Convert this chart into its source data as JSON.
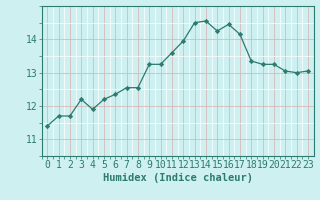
{
  "x": [
    0,
    1,
    2,
    3,
    4,
    5,
    6,
    7,
    8,
    9,
    10,
    11,
    12,
    13,
    14,
    15,
    16,
    17,
    18,
    19,
    20,
    21,
    22,
    23
  ],
  "y": [
    11.4,
    11.7,
    11.7,
    12.2,
    11.9,
    12.2,
    12.35,
    12.55,
    12.55,
    13.25,
    13.25,
    13.6,
    13.95,
    14.5,
    14.55,
    14.25,
    14.45,
    14.15,
    13.35,
    13.25,
    13.25,
    13.05,
    13.0,
    13.05
  ],
  "line_color": "#2d7a6e",
  "marker": "D",
  "marker_size": 2.2,
  "bg_color": "#cef0f0",
  "grid_color_major": "#d9b0b0",
  "grid_color_minor": "#ffffff",
  "axis_color": "#2d7a6e",
  "xlabel": "Humidex (Indice chaleur)",
  "xlabel_fontsize": 7.5,
  "tick_fontsize": 7,
  "ylim": [
    10.75,
    14.85
  ],
  "yticks": [
    11,
    12,
    13,
    14
  ],
  "xlim": [
    -0.5,
    23.5
  ]
}
